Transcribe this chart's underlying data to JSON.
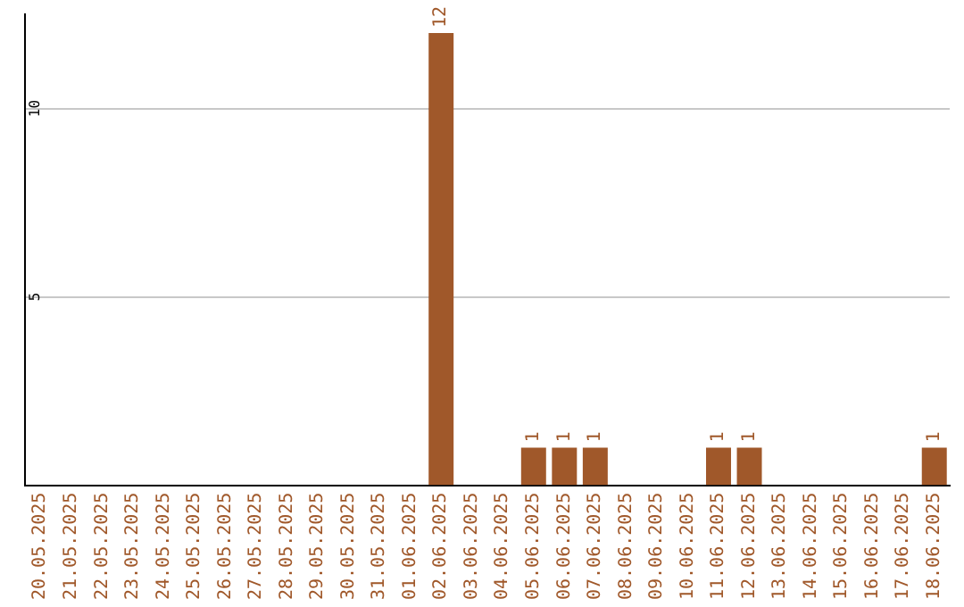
{
  "chart_data": {
    "type": "bar",
    "categories": [
      "20.05.2025",
      "21.05.2025",
      "22.05.2025",
      "23.05.2025",
      "24.05.2025",
      "25.05.2025",
      "26.05.2025",
      "27.05.2025",
      "28.05.2025",
      "29.05.2025",
      "30.05.2025",
      "31.05.2025",
      "01.06.2025",
      "02.06.2025",
      "03.06.2025",
      "04.06.2025",
      "05.06.2025",
      "06.06.2025",
      "07.06.2025",
      "08.06.2025",
      "09.06.2025",
      "10.06.2025",
      "11.06.2025",
      "12.06.2025",
      "13.06.2025",
      "14.06.2025",
      "15.06.2025",
      "16.06.2025",
      "17.06.2025",
      "18.06.2025"
    ],
    "values": [
      0,
      0,
      0,
      0,
      0,
      0,
      0,
      0,
      0,
      0,
      0,
      0,
      0,
      12,
      0,
      0,
      1,
      1,
      1,
      0,
      0,
      0,
      1,
      1,
      0,
      0,
      0,
      0,
      0,
      1
    ],
    "value_labels": [
      null,
      null,
      null,
      null,
      null,
      null,
      null,
      null,
      null,
      null,
      null,
      null,
      null,
      "12",
      null,
      null,
      "1",
      "1",
      "1",
      null,
      null,
      null,
      "1",
      "1",
      null,
      null,
      null,
      null,
      null,
      "1"
    ],
    "color": "#a0582a",
    "ylim": [
      0,
      12.5
    ],
    "yticks": [
      5,
      10
    ],
    "grid": "y",
    "legend": false
  }
}
